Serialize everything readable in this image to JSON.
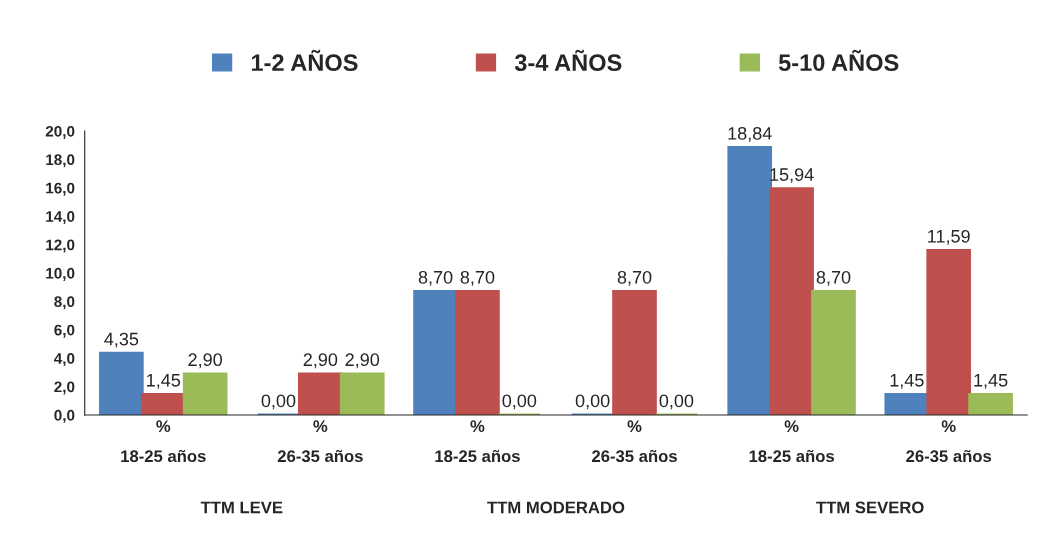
{
  "chart_data": {
    "type": "bar",
    "categories": [
      "%\n18-25 años",
      "%\n26-35 años",
      "%\n18-25 años",
      "%\n26-35 años",
      "%\n18-25 años",
      "%\n26-35 años"
    ],
    "series": [
      {
        "name": "1-2 AÑOS",
        "color": "#4f81bd",
        "values": [
          4.35,
          0,
          8.7,
          0,
          18.84,
          1.45
        ],
        "value_labels": [
          "4,35",
          "0,00",
          "8,70",
          "0,00",
          "18,84",
          "1,45"
        ]
      },
      {
        "name": "3-4 AÑOS",
        "color": "#c0504d",
        "values": [
          1.45,
          2.9,
          8.7,
          8.7,
          15.94,
          11.59
        ],
        "value_labels": [
          "1,45",
          "2,90",
          "8,70",
          "8,70",
          "15,94",
          "11,59"
        ]
      },
      {
        "name": "5-10 AÑOS",
        "color": "#9bbb59",
        "values": [
          2.9,
          2.9,
          0,
          0,
          8.7,
          1.45
        ],
        "value_labels": [
          "2,90",
          "2,90",
          "0,00",
          "0,00",
          "8,70",
          "1,45"
        ]
      }
    ],
    "annotations": [
      "TTM LEVE",
      "TTM MODERADO",
      "TTM SEVERO"
    ],
    "ylim": [
      0,
      20
    ],
    "yticks": [
      {
        "value": 0,
        "label": "0,0"
      },
      {
        "value": 2,
        "label": "2,0"
      },
      {
        "value": 4,
        "label": "4,0"
      },
      {
        "value": 6,
        "label": "6,0"
      },
      {
        "value": 8,
        "label": "8,0"
      },
      {
        "value": 10,
        "label": "10,0"
      },
      {
        "value": 12,
        "label": "12,0"
      },
      {
        "value": 14,
        "label": "14,0"
      },
      {
        "value": 16,
        "label": "16,0"
      },
      {
        "value": 18,
        "label": "18,0"
      },
      {
        "value": 20,
        "label": "20,0"
      }
    ],
    "legend": "top",
    "grid": false
  }
}
